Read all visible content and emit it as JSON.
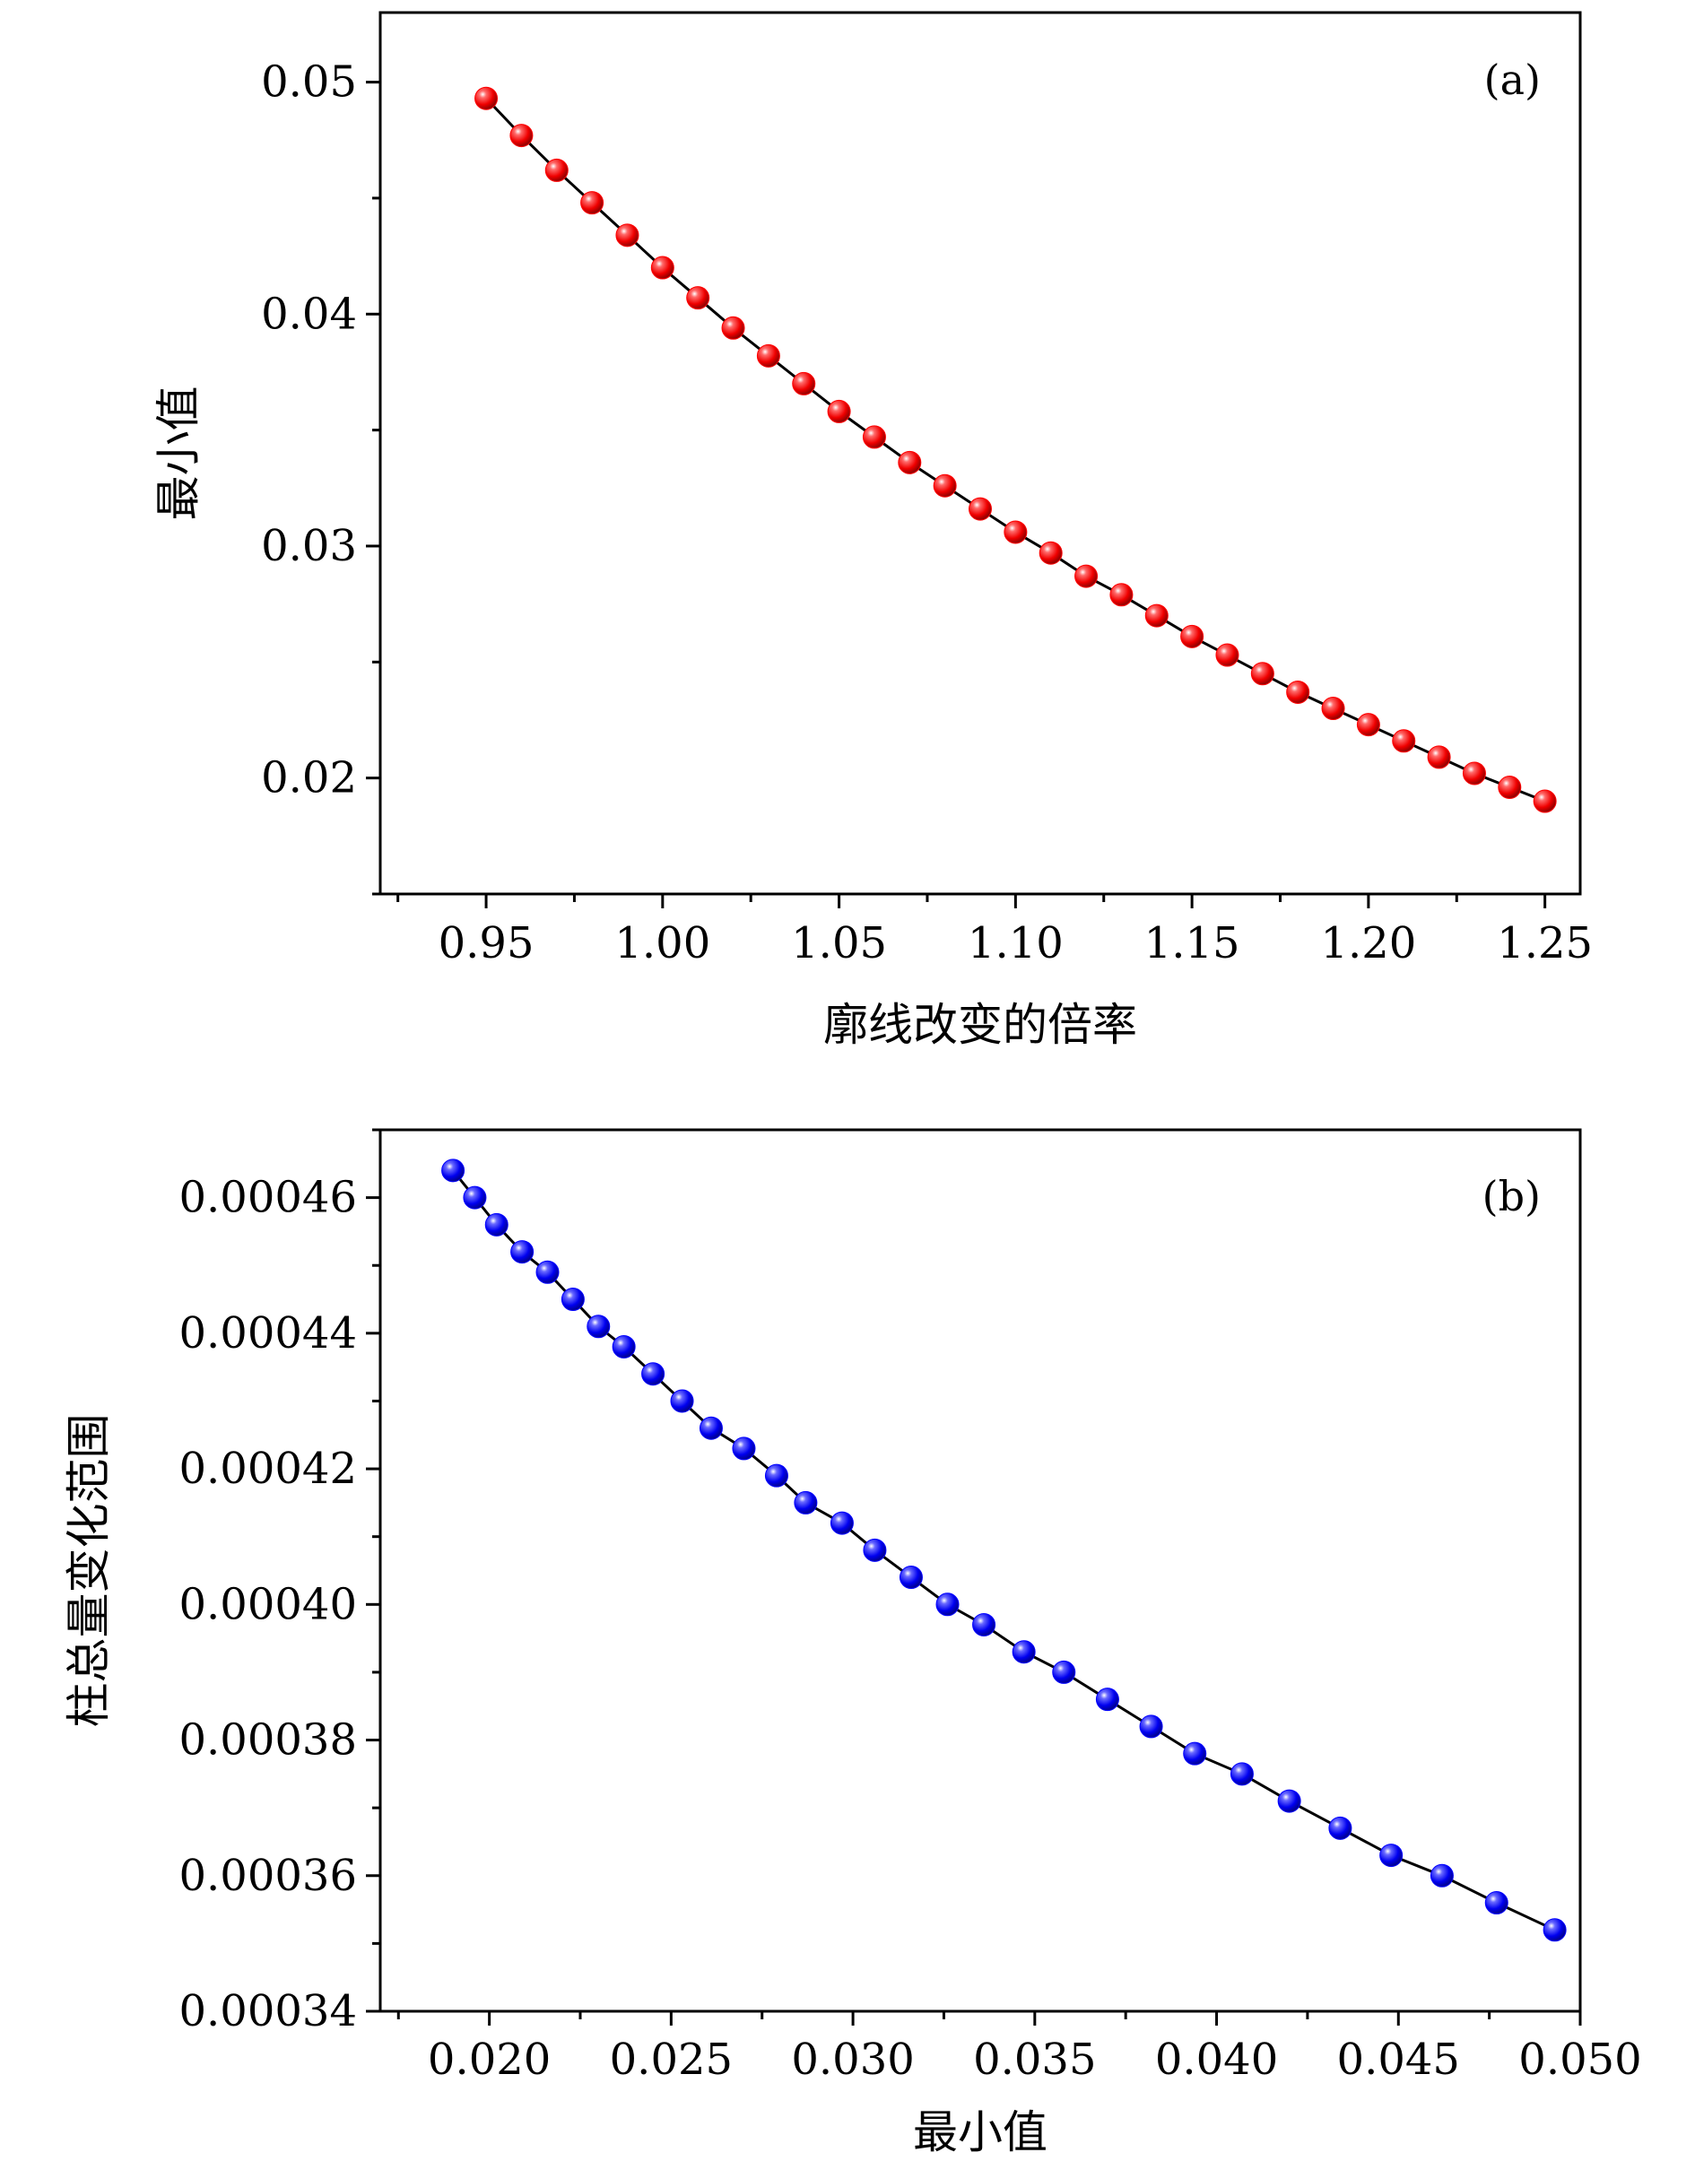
{
  "chart_data": [
    {
      "type": "scatter",
      "panel_label": "(a)",
      "xlabel": "廓线改变的倍率",
      "ylabel": "最小值",
      "xlim": [
        0.92,
        1.26
      ],
      "ylim": [
        0.015,
        0.053
      ],
      "x_ticks": [
        "0.95",
        "1.00",
        "1.05",
        "1.10",
        "1.15",
        "1.20",
        "1.25"
      ],
      "y_ticks": [
        "0.02",
        "0.03",
        "0.04",
        "0.05"
      ],
      "x_tick_values": [
        0.95,
        1.0,
        1.05,
        1.1,
        1.15,
        1.2,
        1.25
      ],
      "y_tick_values": [
        0.02,
        0.03,
        0.04,
        0.05
      ],
      "x_minor_step": 0.025,
      "y_minor_step": 0.005,
      "grid": false,
      "legend": false,
      "marker_color": "#ff0000",
      "line_color": "#000000",
      "x": [
        0.95,
        0.96,
        0.97,
        0.98,
        0.99,
        1.0,
        1.01,
        1.02,
        1.03,
        1.04,
        1.05,
        1.06,
        1.07,
        1.08,
        1.09,
        1.1,
        1.11,
        1.12,
        1.13,
        1.14,
        1.15,
        1.16,
        1.17,
        1.18,
        1.19,
        1.2,
        1.21,
        1.22,
        1.23,
        1.24,
        1.25
      ],
      "y": [
        0.0493,
        0.0477,
        0.0462,
        0.0448,
        0.0434,
        0.042,
        0.0407,
        0.0394,
        0.0382,
        0.037,
        0.0358,
        0.0347,
        0.0336,
        0.0326,
        0.0316,
        0.0306,
        0.0297,
        0.0287,
        0.0279,
        0.027,
        0.0261,
        0.0253,
        0.0245,
        0.0237,
        0.023,
        0.0223,
        0.0216,
        0.0209,
        0.0202,
        0.0196,
        0.019
      ]
    },
    {
      "type": "scatter",
      "panel_label": "(b)",
      "xlabel": "最小值",
      "ylabel": "柱总量变化范围",
      "xlim": [
        0.017,
        0.05
      ],
      "ylim": [
        0.00034,
        0.00047
      ],
      "x_ticks": [
        "0.020",
        "0.025",
        "0.030",
        "0.035",
        "0.040",
        "0.045",
        "0.050"
      ],
      "y_ticks": [
        "0.00034",
        "0.00036",
        "0.00038",
        "0.00040",
        "0.00042",
        "0.00044",
        "0.00046"
      ],
      "x_tick_values": [
        0.02,
        0.025,
        0.03,
        0.035,
        0.04,
        0.045,
        0.05
      ],
      "y_tick_values": [
        0.00034,
        0.00036,
        0.00038,
        0.0004,
        0.00042,
        0.00044,
        0.00046
      ],
      "x_minor_step": 0.0025,
      "y_minor_step": 1e-05,
      "grid": false,
      "legend": false,
      "marker_color": "#0000ff",
      "line_color": "#000000",
      "x": [
        0.019,
        0.0196,
        0.0202,
        0.0209,
        0.0216,
        0.0223,
        0.023,
        0.0237,
        0.0245,
        0.0253,
        0.0261,
        0.027,
        0.0279,
        0.0287,
        0.0297,
        0.0306,
        0.0316,
        0.0326,
        0.0336,
        0.0347,
        0.0358,
        0.037,
        0.0382,
        0.0394,
        0.0407,
        0.042,
        0.0434,
        0.0448,
        0.0462,
        0.0477,
        0.0493
      ],
      "y": [
        0.000464,
        0.00046,
        0.000456,
        0.000452,
        0.000449,
        0.000445,
        0.000441,
        0.000438,
        0.000434,
        0.00043,
        0.000426,
        0.000423,
        0.000419,
        0.000415,
        0.000412,
        0.000408,
        0.000404,
        0.0004,
        0.000397,
        0.000393,
        0.00039,
        0.000386,
        0.000382,
        0.000378,
        0.000375,
        0.000371,
        0.000367,
        0.000363,
        0.00036,
        0.000356,
        0.000352
      ]
    }
  ]
}
